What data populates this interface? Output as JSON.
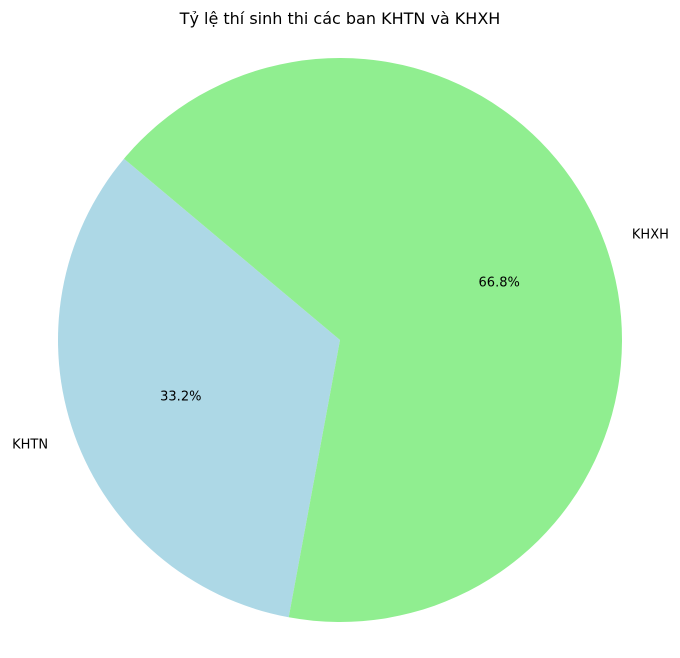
{
  "chart_data": {
    "type": "pie",
    "title": "Tỷ lệ thí sinh thi các ban KHTN và KHXH",
    "slices": [
      {
        "label": "KHTN",
        "value": 33.2,
        "pct_label": "33.2%",
        "color": "#add8e6"
      },
      {
        "label": "KHXH",
        "value": 66.8,
        "pct_label": "66.8%",
        "color": "#90ee90"
      }
    ],
    "start_angle_deg": 140,
    "direction": "counterclockwise",
    "legend": "none"
  }
}
